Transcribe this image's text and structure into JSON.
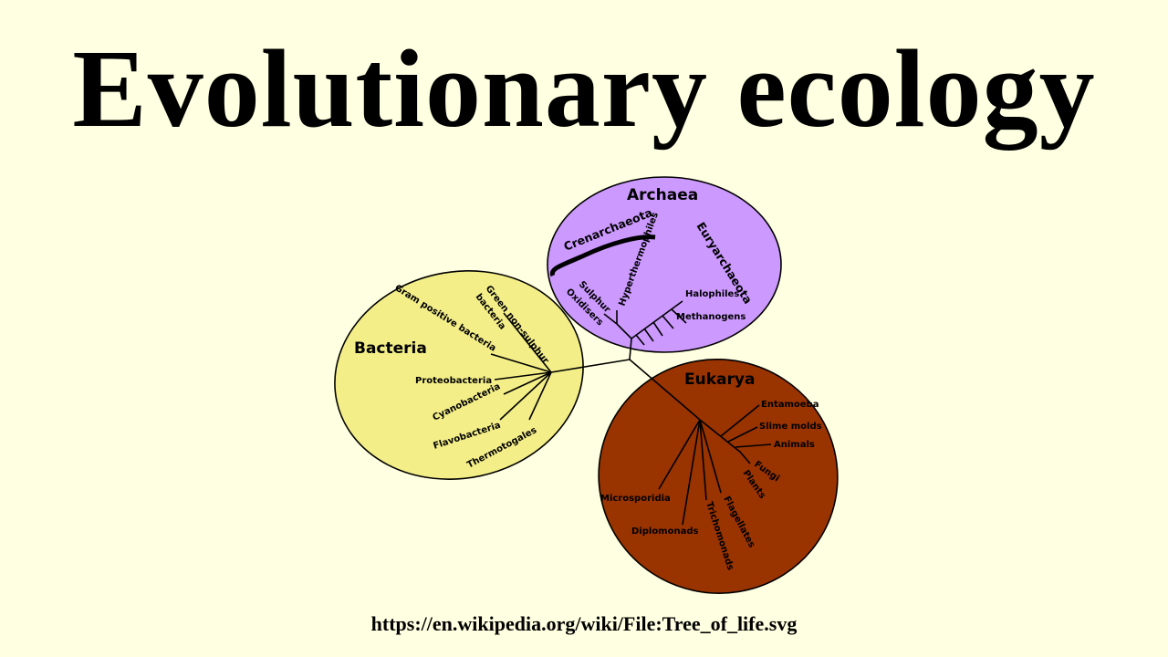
{
  "title": "Evolutionary ecology",
  "caption": "https://en.wikipedia.org/wiki/File:Tree_of_life.svg",
  "colors": {
    "background": "#ffffe1",
    "archaea": "#cc99ff",
    "bacteria": "#f3ee88",
    "eukarya": "#993300"
  },
  "diagram": {
    "archaea": {
      "label": "Archaea",
      "phyla": [
        "Crenarchaeota",
        "Euryarchaeota"
      ],
      "leaves": [
        "Sulphur",
        "Oxidisers",
        "Hyperthermophiles",
        "Halophiles",
        "Methanogens"
      ]
    },
    "bacteria": {
      "label": "Bacteria",
      "leaves": [
        "Green non-sulphur",
        "bacteria",
        "Gram positive bacteria",
        "Proteobacteria",
        "Cyanobacteria",
        "Flavobacteria",
        "Thermotogales"
      ]
    },
    "eukarya": {
      "label": "Eukarya",
      "leaves": [
        "Entamoeba",
        "Slime molds",
        "Animals",
        "Fungi",
        "Plants",
        "Microsporidia",
        "Diplomonads",
        "Trichomonads",
        "Flagellates"
      ]
    }
  }
}
